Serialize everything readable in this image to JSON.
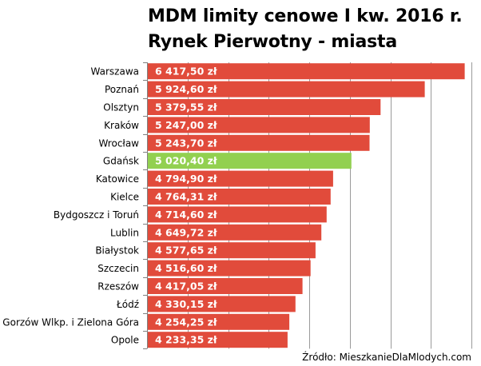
{
  "chart_data": {
    "type": "bar",
    "orientation": "horizontal",
    "title": [
      "MDM limity cenowe I kw. 2016 r.",
      "Rynek Pierwotny - miasta"
    ],
    "categories": [
      "Warszawa",
      "Poznań",
      "Olsztyn",
      "Kraków",
      "Wrocław",
      "Gdańsk",
      "Katowice",
      "Kielce",
      "Bydgoszcz i Toruń",
      "Lublin",
      "Białystok",
      "Szczecin",
      "Rzeszów",
      "Łódź",
      "Gorzów Wlkp. i Zielona Góra",
      "Opole"
    ],
    "values": [
      6417.5,
      5924.6,
      5379.55,
      5247.0,
      5243.7,
      5020.4,
      4794.9,
      4764.31,
      4714.6,
      4649.72,
      4577.65,
      4516.6,
      4417.05,
      4330.15,
      4254.25,
      4233.35
    ],
    "value_labels": [
      "6 417,50 zł",
      "5 924,60 zł",
      "5 379,55 zł",
      "5 247,00 zł",
      "5 243,70 zł",
      "5 020,40 zł",
      "4 794,90 zł",
      "4 764,31 zł",
      "4 714,60 zł",
      "4 649,72 zł",
      "4 577,65 zł",
      "4 516,60 zł",
      "4 417,05 zł",
      "4 330,15 zł",
      "4 254,25 zł",
      "4 233,35 zł"
    ],
    "highlight_index": 5,
    "xlim": [
      2500,
      6500
    ],
    "grid": true,
    "xlabel": "",
    "ylabel": ""
  },
  "colors": {
    "bar": "#e14b3b",
    "highlight": "#92d050",
    "grid": "#9a9a9a",
    "label_text": "#ffffff"
  },
  "source": "Źródło: MieszkanieDlaMlodych.com"
}
